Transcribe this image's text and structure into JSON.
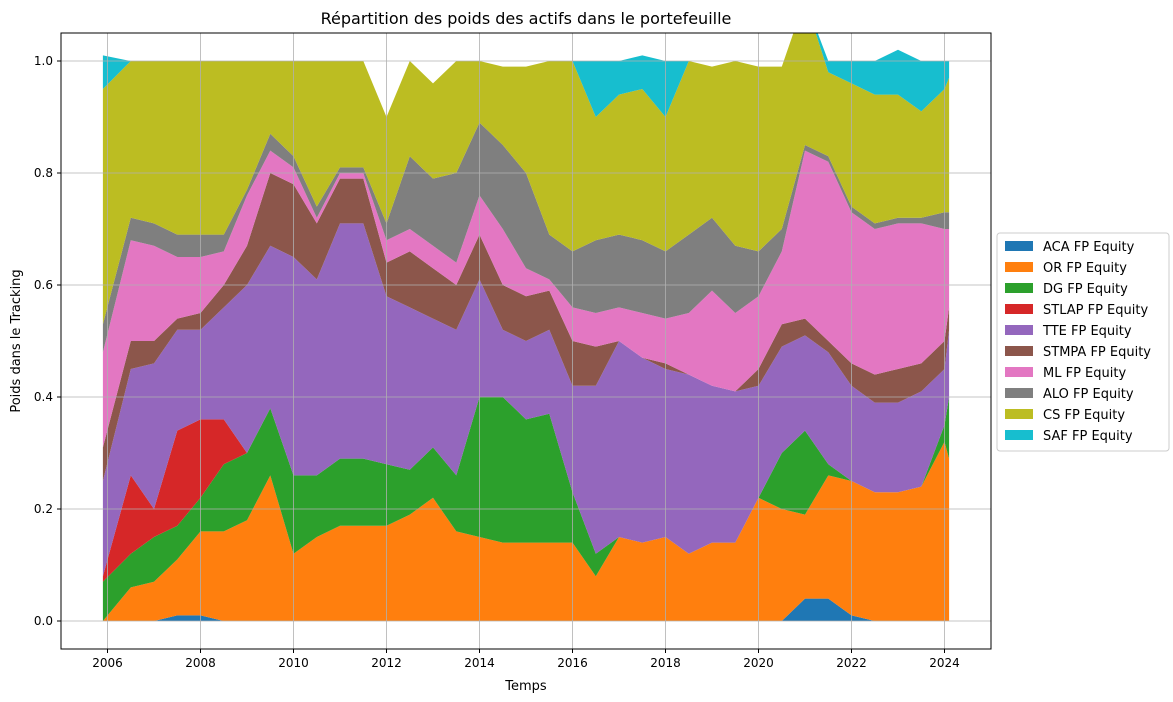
{
  "chart_data": {
    "type": "area",
    "stacked": true,
    "title": "Répartition des poids des actifs dans le portefeuille",
    "xlabel": "Temps",
    "ylabel": "Poids dans le Tracking",
    "xlim": [
      2005.0,
      2025.0
    ],
    "ylim": [
      -0.05,
      1.05
    ],
    "x_ticks": [
      2006,
      2008,
      2010,
      2012,
      2014,
      2016,
      2018,
      2020,
      2022,
      2024
    ],
    "x_tick_labels": [
      "2006",
      "2008",
      "2010",
      "2012",
      "2014",
      "2016",
      "2018",
      "2020",
      "2022",
      "2024"
    ],
    "y_ticks": [
      0.0,
      0.2,
      0.4,
      0.6,
      0.8,
      1.0
    ],
    "y_tick_labels": [
      "0.0",
      "0.2",
      "0.4",
      "0.6",
      "0.8",
      "1.0"
    ],
    "grid": true,
    "legend_position": "outside-right",
    "x": [
      2005.9,
      2006.5,
      2007.0,
      2007.5,
      2008.0,
      2008.5,
      2009.0,
      2009.5,
      2010.0,
      2010.5,
      2011.0,
      2011.5,
      2012.0,
      2012.5,
      2013.0,
      2013.5,
      2014.0,
      2014.5,
      2015.0,
      2015.5,
      2016.0,
      2016.5,
      2017.0,
      2017.5,
      2018.0,
      2018.5,
      2019.0,
      2019.5,
      2020.0,
      2020.5,
      2021.0,
      2021.5,
      2022.0,
      2022.5,
      2023.0,
      2023.5,
      2024.0,
      2024.1
    ],
    "series": [
      {
        "name": "ACA FP Equity",
        "color": "#1f77b4",
        "values": [
          0,
          0,
          0,
          0.01,
          0.01,
          0,
          0,
          0,
          0,
          0,
          0,
          0,
          0,
          0,
          0,
          0,
          0,
          0,
          0,
          0,
          0,
          0,
          0,
          0,
          0,
          0,
          0,
          0,
          0,
          0,
          0.04,
          0.04,
          0.01,
          0,
          0,
          0,
          0,
          0
        ]
      },
      {
        "name": "OR FP Equity",
        "color": "#ff7f0e",
        "values": [
          0,
          0.06,
          0.07,
          0.1,
          0.15,
          0.16,
          0.18,
          0.26,
          0.12,
          0.15,
          0.17,
          0.17,
          0.17,
          0.19,
          0.22,
          0.16,
          0.15,
          0.14,
          0.14,
          0.14,
          0.14,
          0.08,
          0.15,
          0.14,
          0.15,
          0.12,
          0.14,
          0.14,
          0.22,
          0.2,
          0.15,
          0.22,
          0.24,
          0.23,
          0.23,
          0.24,
          0.32,
          0.29
        ]
      },
      {
        "name": "DG FP Equity",
        "color": "#2ca02c",
        "values": [
          0.07,
          0.06,
          0.08,
          0.06,
          0.06,
          0.12,
          0.12,
          0.12,
          0.14,
          0.11,
          0.12,
          0.12,
          0.11,
          0.08,
          0.09,
          0.1,
          0.25,
          0.26,
          0.22,
          0.23,
          0.09,
          0.04,
          0,
          0,
          0,
          0,
          0,
          0,
          0,
          0.1,
          0.15,
          0.02,
          0,
          0,
          0,
          0,
          0.03,
          0.11
        ]
      },
      {
        "name": "STLAP FP Equity",
        "color": "#d62728",
        "values": [
          0.01,
          0.14,
          0.05,
          0.17,
          0.14,
          0.08,
          0,
          0,
          0,
          0,
          0,
          0,
          0,
          0,
          0,
          0,
          0,
          0,
          0,
          0,
          0,
          0,
          0,
          0,
          0,
          0,
          0,
          0,
          0,
          0,
          0,
          0,
          0,
          0,
          0,
          0,
          0,
          0
        ]
      },
      {
        "name": "TTE FP Equity",
        "color": "#9467bd",
        "values": [
          0.17,
          0.19,
          0.26,
          0.18,
          0.16,
          0.2,
          0.3,
          0.29,
          0.39,
          0.35,
          0.42,
          0.42,
          0.3,
          0.29,
          0.23,
          0.26,
          0.21,
          0.12,
          0.14,
          0.15,
          0.19,
          0.3,
          0.35,
          0.33,
          0.3,
          0.32,
          0.28,
          0.27,
          0.2,
          0.19,
          0.17,
          0.2,
          0.17,
          0.16,
          0.16,
          0.17,
          0.1,
          0.12
        ]
      },
      {
        "name": "STMPA FP Equity",
        "color": "#8c564b",
        "values": [
          0.06,
          0.05,
          0.04,
          0.02,
          0.03,
          0.04,
          0.07,
          0.13,
          0.13,
          0.1,
          0.08,
          0.08,
          0.06,
          0.1,
          0.09,
          0.08,
          0.08,
          0.08,
          0.08,
          0.07,
          0.08,
          0.07,
          0,
          0,
          0.01,
          0,
          0,
          0,
          0.03,
          0.04,
          0.03,
          0.02,
          0.04,
          0.05,
          0.06,
          0.05,
          0.05,
          0.04
        ]
      },
      {
        "name": "ML FP Equity",
        "color": "#e377c2",
        "values": [
          0.17,
          0.18,
          0.17,
          0.11,
          0.1,
          0.06,
          0.09,
          0.04,
          0.03,
          0.01,
          0.01,
          0.01,
          0.04,
          0.04,
          0.04,
          0.04,
          0.07,
          0.1,
          0.05,
          0.02,
          0.06,
          0.06,
          0.06,
          0.08,
          0.08,
          0.11,
          0.17,
          0.14,
          0.13,
          0.13,
          0.3,
          0.32,
          0.27,
          0.26,
          0.26,
          0.25,
          0.2,
          0.14
        ]
      },
      {
        "name": "ALO FP Equity",
        "color": "#7f7f7f",
        "values": [
          0.05,
          0.04,
          0.04,
          0.04,
          0.04,
          0.03,
          0.01,
          0.03,
          0.02,
          0.02,
          0.01,
          0.01,
          0.03,
          0.13,
          0.12,
          0.16,
          0.13,
          0.15,
          0.17,
          0.08,
          0.1,
          0.13,
          0.13,
          0.13,
          0.12,
          0.14,
          0.13,
          0.12,
          0.08,
          0.04,
          0.01,
          0.01,
          0.01,
          0.01,
          0.01,
          0.01,
          0.03,
          0.03
        ]
      },
      {
        "name": "CS FP Equity",
        "color": "#bcbd22",
        "values": [
          0.42,
          0.28,
          0.29,
          0.31,
          0.31,
          0.31,
          0.23,
          0.13,
          0.17,
          0.26,
          0.19,
          0.19,
          0.19,
          0.17,
          0.17,
          0.2,
          0.11,
          0.14,
          0.19,
          0.31,
          0.34,
          0.22,
          0.25,
          0.27,
          0.24,
          0.31,
          0.27,
          0.33,
          0.33,
          0.29,
          0.26,
          0.15,
          0.22,
          0.23,
          0.22,
          0.19,
          0.22,
          0.24
        ]
      },
      {
        "name": "SAF FP Equity",
        "color": "#17becf",
        "values": [
          0.06,
          0,
          0,
          0,
          0,
          0,
          0,
          0,
          0,
          0,
          0,
          0,
          0,
          0,
          0,
          0,
          0,
          0,
          0,
          0,
          0,
          0.1,
          0.06,
          0.06,
          0.1,
          0,
          0,
          0,
          0,
          0,
          0,
          0.02,
          0.04,
          0.06,
          0.08,
          0.09,
          0.05,
          0.03
        ]
      }
    ]
  }
}
